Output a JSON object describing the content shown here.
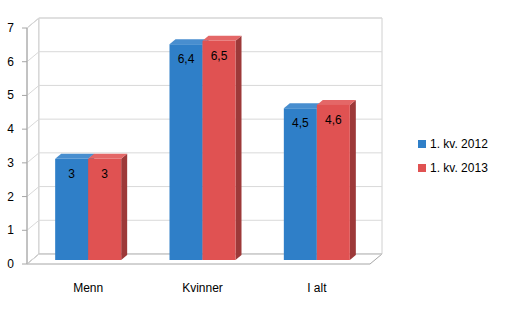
{
  "chart_data": {
    "type": "bar",
    "categories": [
      "Menn",
      "Kvinner",
      "I alt"
    ],
    "series": [
      {
        "name": "1. kv. 2012",
        "color": "#2f7fc8",
        "values": [
          3,
          6.4,
          4.5
        ],
        "value_labels": [
          "3",
          "6,4",
          "4,5"
        ]
      },
      {
        "name": "1. kv. 2013",
        "color": "#e05252",
        "values": [
          3,
          6.5,
          4.6
        ],
        "value_labels": [
          "3",
          "6,5",
          "4,6"
        ]
      }
    ],
    "ylim": [
      0,
      7
    ],
    "yticks": [
      0,
      1,
      2,
      3,
      4,
      5,
      6,
      7
    ],
    "grid": true,
    "legend": "right",
    "data_labels": true
  }
}
